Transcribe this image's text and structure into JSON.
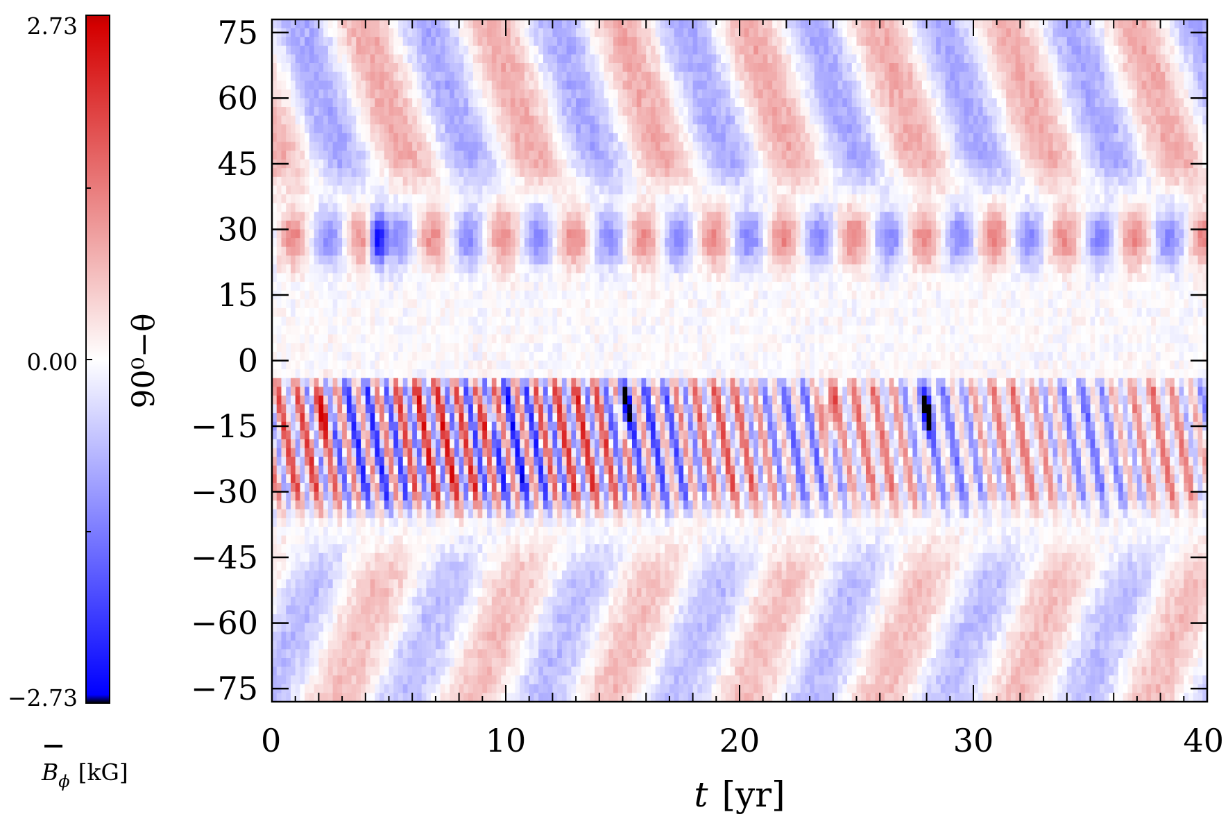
{
  "chart_data": {
    "type": "heatmap",
    "title": "",
    "xlabel": {
      "var": "t",
      "unit": "[yr]"
    },
    "ylabel": "90⁰−θ",
    "xlim": [
      0,
      40
    ],
    "ylim": [
      -78,
      78
    ],
    "xticks": [
      0,
      10,
      20,
      30,
      40
    ],
    "xtick_labels": [
      "0",
      "10",
      "20",
      "30",
      "40"
    ],
    "yticks": [
      75,
      60,
      45,
      30,
      15,
      0,
      -15,
      -30,
      -45,
      -60,
      -75
    ],
    "ytick_labels": [
      "75",
      "60",
      "45",
      "30",
      "15",
      "0",
      "−15",
      "−30",
      "−45",
      "−60",
      "−75"
    ],
    "colorbar": {
      "label_symbol": "B",
      "label_subscript": "ϕ",
      "label_unit": "[kG]",
      "min": -2.73,
      "max": 2.73,
      "tick_values": [
        2.73,
        0.0,
        -2.73
      ],
      "tick_labels": [
        "2.73",
        "0.00",
        "−2.73"
      ],
      "colormap": [
        "#000000",
        "#0000ff",
        "#ffffff",
        "#d40000",
        "#c00000"
      ]
    },
    "field_features": {
      "northern_band_latitude": 28,
      "northern_band_period_yr": 3.0,
      "northern_band_first_positive_yr": 0.9,
      "southern_band_latitude_range": [
        -30,
        -5
      ],
      "southern_band_period_yr": 0.85,
      "high_latitude_drift_period_yr": 5.5,
      "peak_amplitude": 2.73,
      "strong_feature_yr": [
        2.2,
        4.5,
        9.3,
        15.0,
        23.8,
        28.0
      ]
    }
  }
}
